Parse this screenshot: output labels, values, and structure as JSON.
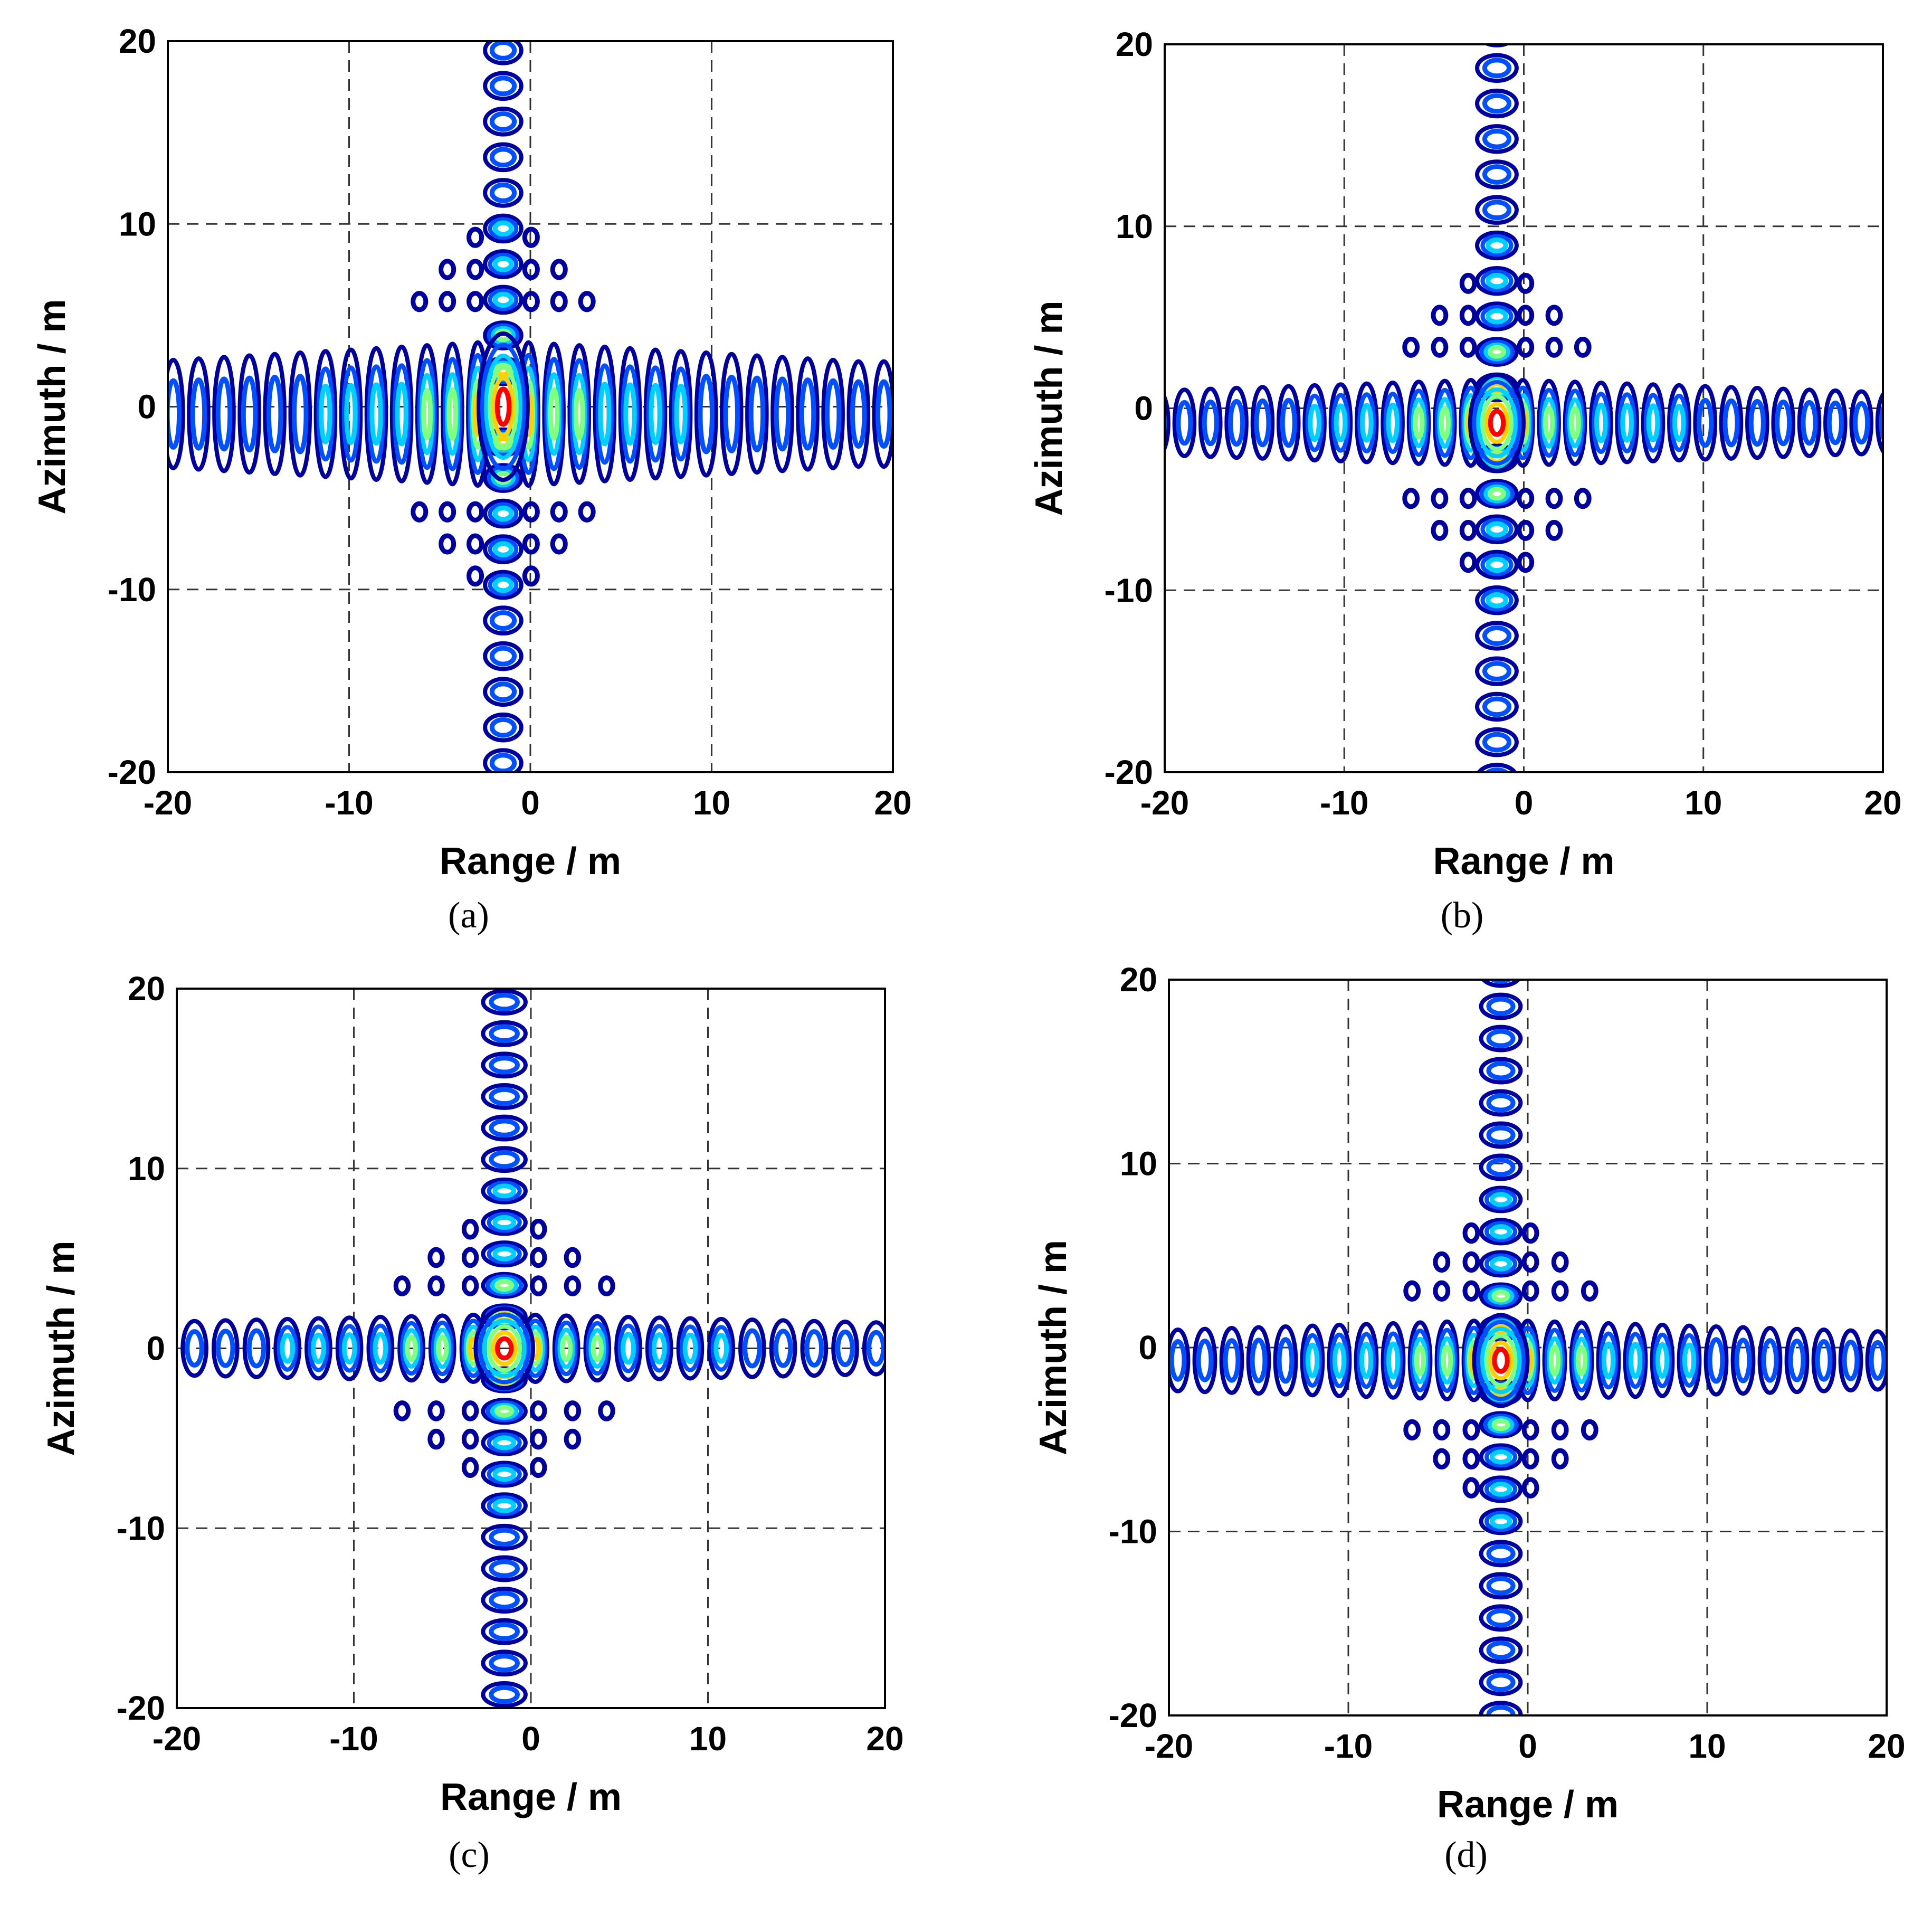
{
  "chart_data": [
    {
      "type": "contour",
      "panel_label": "(a)",
      "xlabel": "Range / m",
      "ylabel": "Azimuth / m",
      "xlim": [
        -20,
        20
      ],
      "ylim": [
        -20,
        20
      ],
      "xticks": [
        "-20",
        "-10",
        "0",
        "10",
        "20"
      ],
      "yticks": [
        "-20",
        "-10",
        "0",
        "10",
        "20"
      ],
      "grid": true,
      "peak": {
        "range": -1.5,
        "azimuth": 0
      },
      "lobe_spacing": {
        "range": 1.4,
        "azimuth": 1.95
      },
      "horizontal_band_half_height": 4.0,
      "vertical_band_half_width": 1.0,
      "cross_sidelobes": true,
      "description_levels": [
        "peak",
        "high",
        "medium",
        "low",
        "lowest"
      ]
    },
    {
      "type": "contour",
      "panel_label": "(b)",
      "xlabel": "Range / m",
      "ylabel": "Azimuth / m",
      "xlim": [
        -20,
        20
      ],
      "ylim": [
        -20,
        20
      ],
      "xticks": [
        "-20",
        "-10",
        "0",
        "10",
        "20"
      ],
      "yticks": [
        "-20",
        "-10",
        "0",
        "10",
        "20"
      ],
      "grid": true,
      "peak": {
        "range": -1.5,
        "azimuth": -0.8
      },
      "lobe_spacing": {
        "range": 1.45,
        "azimuth": 1.95
      },
      "horizontal_band_half_height": 2.4,
      "vertical_band_half_width": 1.1,
      "cross_sidelobes": true,
      "description_levels": [
        "peak",
        "high",
        "medium",
        "low",
        "lowest"
      ]
    },
    {
      "type": "contour",
      "panel_label": "(c)",
      "xlabel": "Range / m",
      "ylabel": "Azimuth / m",
      "xlim": [
        -20,
        20
      ],
      "ylim": [
        -20,
        20
      ],
      "xticks": [
        "-20",
        "-10",
        "0",
        "10",
        "20"
      ],
      "yticks": [
        "-20",
        "-10",
        "0",
        "10",
        "20"
      ],
      "grid": true,
      "peak": {
        "range": -1.5,
        "azimuth": 0
      },
      "lobe_spacing": {
        "range": 1.75,
        "azimuth": 1.75
      },
      "horizontal_band_half_height": 1.9,
      "vertical_band_half_width": 1.2,
      "cross_sidelobes": true,
      "description_levels": [
        "peak",
        "high",
        "medium",
        "low",
        "lowest"
      ]
    },
    {
      "type": "contour",
      "panel_label": "(d)",
      "xlabel": "Range / m",
      "ylabel": "Azimuth / m",
      "xlim": [
        -20,
        20
      ],
      "ylim": [
        -20,
        20
      ],
      "xticks": [
        "-20",
        "-10",
        "0",
        "10",
        "20"
      ],
      "yticks": [
        "-20",
        "-10",
        "0",
        "10",
        "20"
      ],
      "grid": true,
      "peak": {
        "range": -1.5,
        "azimuth": -0.7
      },
      "lobe_spacing": {
        "range": 1.5,
        "azimuth": 1.75
      },
      "horizontal_band_half_height": 2.2,
      "vertical_band_half_width": 1.1,
      "cross_sidelobes": true,
      "description_levels": [
        "peak",
        "high",
        "medium",
        "low",
        "lowest"
      ]
    }
  ],
  "colors": {
    "lowest": "#00009f",
    "low": "#0050ff",
    "medium": "#00d0ff",
    "mid_high": "#80ff80",
    "high": "#ffd000",
    "peak": "#ff0000"
  }
}
